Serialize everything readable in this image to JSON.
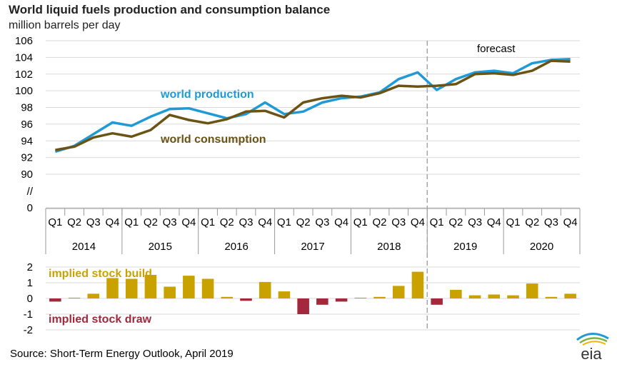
{
  "header": {
    "title": "World liquid fuels production and consumption balance",
    "subtitle": "million barrels per day"
  },
  "footer": {
    "source": "Short-Term Energy Outlook, April 2019",
    "logo_text": "eia"
  },
  "colors": {
    "production": "#1f9ad6",
    "consumption": "#6b5314",
    "build": "#c9a200",
    "draw": "#a3283b",
    "grid": "#d9d9d9",
    "forecast_line": "#a6a6a6"
  },
  "chart_data": [
    {
      "type": "line",
      "title": "World liquid fuels production and consumption balance",
      "ylabel": "million barrels per day",
      "ylim": [
        90,
        106
      ],
      "y_ticks": [
        "106",
        "104",
        "102",
        "100",
        "98",
        "96",
        "94",
        "92",
        "90",
        "//",
        "0"
      ],
      "grid": true,
      "categories": [
        "Q1",
        "Q2",
        "Q3",
        "Q4",
        "Q1",
        "Q2",
        "Q3",
        "Q4",
        "Q1",
        "Q2",
        "Q3",
        "Q4",
        "Q1",
        "Q2",
        "Q3",
        "Q4",
        "Q1",
        "Q2",
        "Q3",
        "Q4",
        "Q1",
        "Q2",
        "Q3",
        "Q4",
        "Q1",
        "Q2",
        "Q3",
        "Q4"
      ],
      "years": [
        "2014",
        "2015",
        "2016",
        "2017",
        "2018",
        "2019",
        "2020"
      ],
      "forecast_label": "forecast",
      "forecast_start_index": 20,
      "series": [
        {
          "name": "world production",
          "values": [
            92.7,
            93.4,
            94.8,
            96.2,
            95.8,
            96.9,
            97.8,
            97.9,
            97.3,
            96.7,
            97.2,
            98.6,
            97.2,
            97.5,
            98.6,
            99.1,
            99.3,
            99.8,
            101.4,
            102.2,
            100.1,
            101.4,
            102.2,
            102.4,
            102.1,
            103.3,
            103.7,
            103.8
          ]
        },
        {
          "name": "world consumption",
          "values": [
            92.9,
            93.3,
            94.4,
            94.9,
            94.5,
            95.3,
            97.1,
            96.5,
            96.1,
            96.6,
            97.5,
            97.6,
            96.8,
            98.6,
            99.1,
            99.4,
            99.2,
            99.7,
            100.6,
            100.5,
            100.6,
            100.8,
            102.0,
            102.1,
            101.9,
            102.4,
            103.6,
            103.5
          ]
        }
      ]
    },
    {
      "type": "bar",
      "ylim": [
        -2,
        2
      ],
      "y_ticks": [
        "2",
        "1",
        "0",
        "-1",
        "-2"
      ],
      "annotations": [
        "implied stock  build",
        "implied stock draw"
      ],
      "values": [
        -0.2,
        0.05,
        0.3,
        1.3,
        1.25,
        1.5,
        0.75,
        1.45,
        1.25,
        0.1,
        -0.15,
        1.05,
        0.45,
        -1.0,
        -0.4,
        -0.2,
        0.05,
        0.1,
        0.8,
        1.7,
        -0.4,
        0.55,
        0.2,
        0.25,
        0.2,
        0.95,
        0.1,
        0.3
      ]
    }
  ]
}
